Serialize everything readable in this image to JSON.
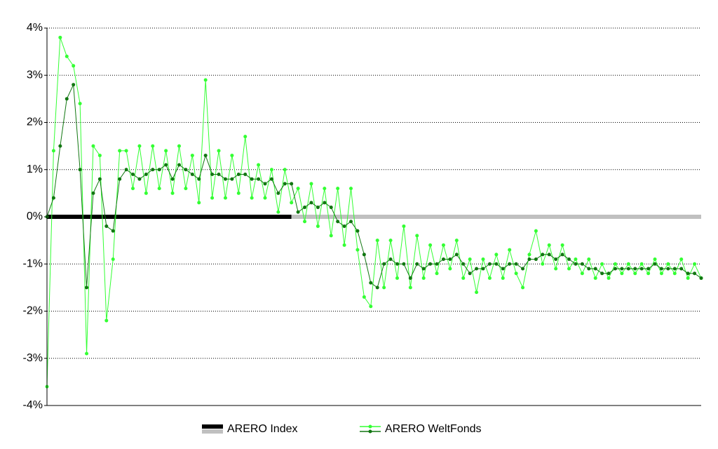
{
  "chart_data": {
    "type": "line",
    "ylim": [
      -4,
      4
    ],
    "yticks": [
      {
        "value": 4,
        "label": "4%"
      },
      {
        "value": 3,
        "label": "3%"
      },
      {
        "value": 2,
        "label": "2%"
      },
      {
        "value": 1,
        "label": "1%"
      },
      {
        "value": 0,
        "label": "0%"
      },
      {
        "value": -1,
        "label": "-1%"
      },
      {
        "value": -2,
        "label": "-2%"
      },
      {
        "value": -3,
        "label": "-3%"
      },
      {
        "value": -4,
        "label": "-4%"
      }
    ],
    "grid": true,
    "legend": "bottom",
    "series": [
      {
        "name": "ARERO Index",
        "markers": false,
        "lines": [
          {
            "color": "#000000",
            "values": [
              0,
              0,
              0,
              0,
              0,
              0,
              0,
              0,
              0,
              0,
              0,
              0,
              0,
              0,
              0,
              0,
              0,
              0,
              0,
              0,
              0,
              0,
              0,
              0,
              0,
              0,
              0,
              0,
              0,
              0,
              0,
              0,
              0,
              0,
              0,
              0,
              0,
              0,
              null,
              null,
              null,
              null,
              null,
              null,
              null,
              null,
              null,
              null,
              null,
              null,
              null,
              null,
              null,
              null,
              null,
              null,
              null,
              null,
              null,
              null,
              null,
              null,
              null,
              null,
              null,
              null,
              null,
              null,
              null,
              null,
              null,
              null,
              null,
              null,
              null,
              null,
              null,
              null,
              null,
              null,
              null,
              null,
              null,
              null,
              null,
              null,
              null,
              null,
              null,
              null,
              null,
              null,
              null,
              null,
              null,
              null,
              null,
              null,
              null,
              null
            ]
          },
          {
            "color": "#c0c0c0",
            "values": [
              null,
              null,
              null,
              null,
              null,
              null,
              null,
              null,
              null,
              null,
              null,
              null,
              null,
              null,
              null,
              null,
              null,
              null,
              null,
              null,
              null,
              null,
              null,
              null,
              null,
              null,
              null,
              null,
              null,
              null,
              null,
              null,
              null,
              null,
              null,
              null,
              null,
              0,
              0,
              0,
              0,
              0,
              0,
              0,
              0,
              0,
              0,
              0,
              0,
              0,
              0,
              0,
              0,
              0,
              0,
              0,
              0,
              0,
              0,
              0,
              0,
              0,
              0,
              0,
              0,
              0,
              0,
              0,
              0,
              0,
              0,
              0,
              0,
              0,
              0,
              0,
              0,
              0,
              0,
              0,
              0,
              0,
              0,
              0,
              0,
              0,
              0,
              0,
              0,
              0,
              0,
              0,
              0,
              0,
              0,
              0,
              0,
              0,
              0,
              0
            ]
          }
        ]
      },
      {
        "name": "ARERO WeltFonds",
        "markers": true,
        "lines": [
          {
            "color": "#33ff33",
            "values": [
              -3.6,
              1.4,
              3.8,
              3.4,
              3.2,
              2.4,
              -2.9,
              1.5,
              1.3,
              -2.2,
              -0.9,
              1.4,
              1.4,
              0.6,
              1.5,
              0.5,
              1.5,
              0.6,
              1.4,
              0.5,
              1.5,
              0.6,
              1.3,
              0.3,
              2.9,
              0.4,
              1.4,
              0.4,
              1.3,
              0.5,
              1.7,
              0.4,
              1.1,
              0.4,
              1.0,
              0.1,
              1.0,
              0.3,
              0.6,
              -0.1,
              0.7,
              -0.2,
              0.6,
              -0.4,
              0.6,
              -0.6,
              0.6,
              -0.7,
              -1.7,
              -1.9,
              -0.5,
              -1.5,
              -0.5,
              -1.3,
              -0.2,
              -1.5,
              -0.4,
              -1.3,
              -0.6,
              -1.2,
              -0.6,
              -1.1,
              -0.5,
              -1.3,
              -0.9,
              -1.6,
              -0.9,
              -1.3,
              -0.8,
              -1.3,
              -0.7,
              -1.2,
              -1.5,
              -0.8,
              -0.3,
              -1.0,
              -0.6,
              -1.1,
              -0.6,
              -1.1,
              -0.9,
              -1.2,
              -0.9,
              -1.3,
              -1.0,
              -1.3,
              -1.0,
              -1.2,
              -1.0,
              -1.2,
              -1.0,
              -1.2,
              -0.9,
              -1.2,
              -1.0,
              -1.2,
              -0.9,
              -1.3,
              -1.0,
              -1.3
            ]
          },
          {
            "color": "#117711",
            "values": [
              0,
              0.4,
              1.5,
              2.5,
              2.8,
              1.0,
              -1.5,
              0.5,
              0.8,
              -0.2,
              -0.3,
              0.8,
              1.0,
              0.9,
              0.8,
              0.9,
              1.0,
              1.0,
              1.1,
              0.8,
              1.1,
              1.0,
              0.9,
              0.8,
              1.3,
              0.9,
              0.9,
              0.8,
              0.8,
              0.9,
              0.9,
              0.8,
              0.8,
              0.7,
              0.8,
              0.5,
              0.7,
              0.7,
              0.1,
              0.2,
              0.3,
              0.2,
              0.3,
              0.2,
              -0.1,
              -0.2,
              -0.1,
              -0.3,
              -0.8,
              -1.4,
              -1.5,
              -1.0,
              -0.9,
              -1.0,
              -1.0,
              -1.3,
              -1.0,
              -1.1,
              -1.0,
              -1.0,
              -0.9,
              -0.9,
              -0.8,
              -1.0,
              -1.2,
              -1.1,
              -1.1,
              -1.0,
              -1.0,
              -1.1,
              -1.0,
              -1.0,
              -1.1,
              -0.9,
              -0.9,
              -0.8,
              -0.8,
              -0.9,
              -0.8,
              -0.9,
              -1.0,
              -1.0,
              -1.1,
              -1.1,
              -1.2,
              -1.2,
              -1.1,
              -1.1,
              -1.1,
              -1.1,
              -1.1,
              -1.1,
              -1.0,
              -1.1,
              -1.1,
              -1.1,
              -1.1,
              -1.2,
              -1.2,
              -1.3
            ]
          }
        ]
      }
    ]
  }
}
